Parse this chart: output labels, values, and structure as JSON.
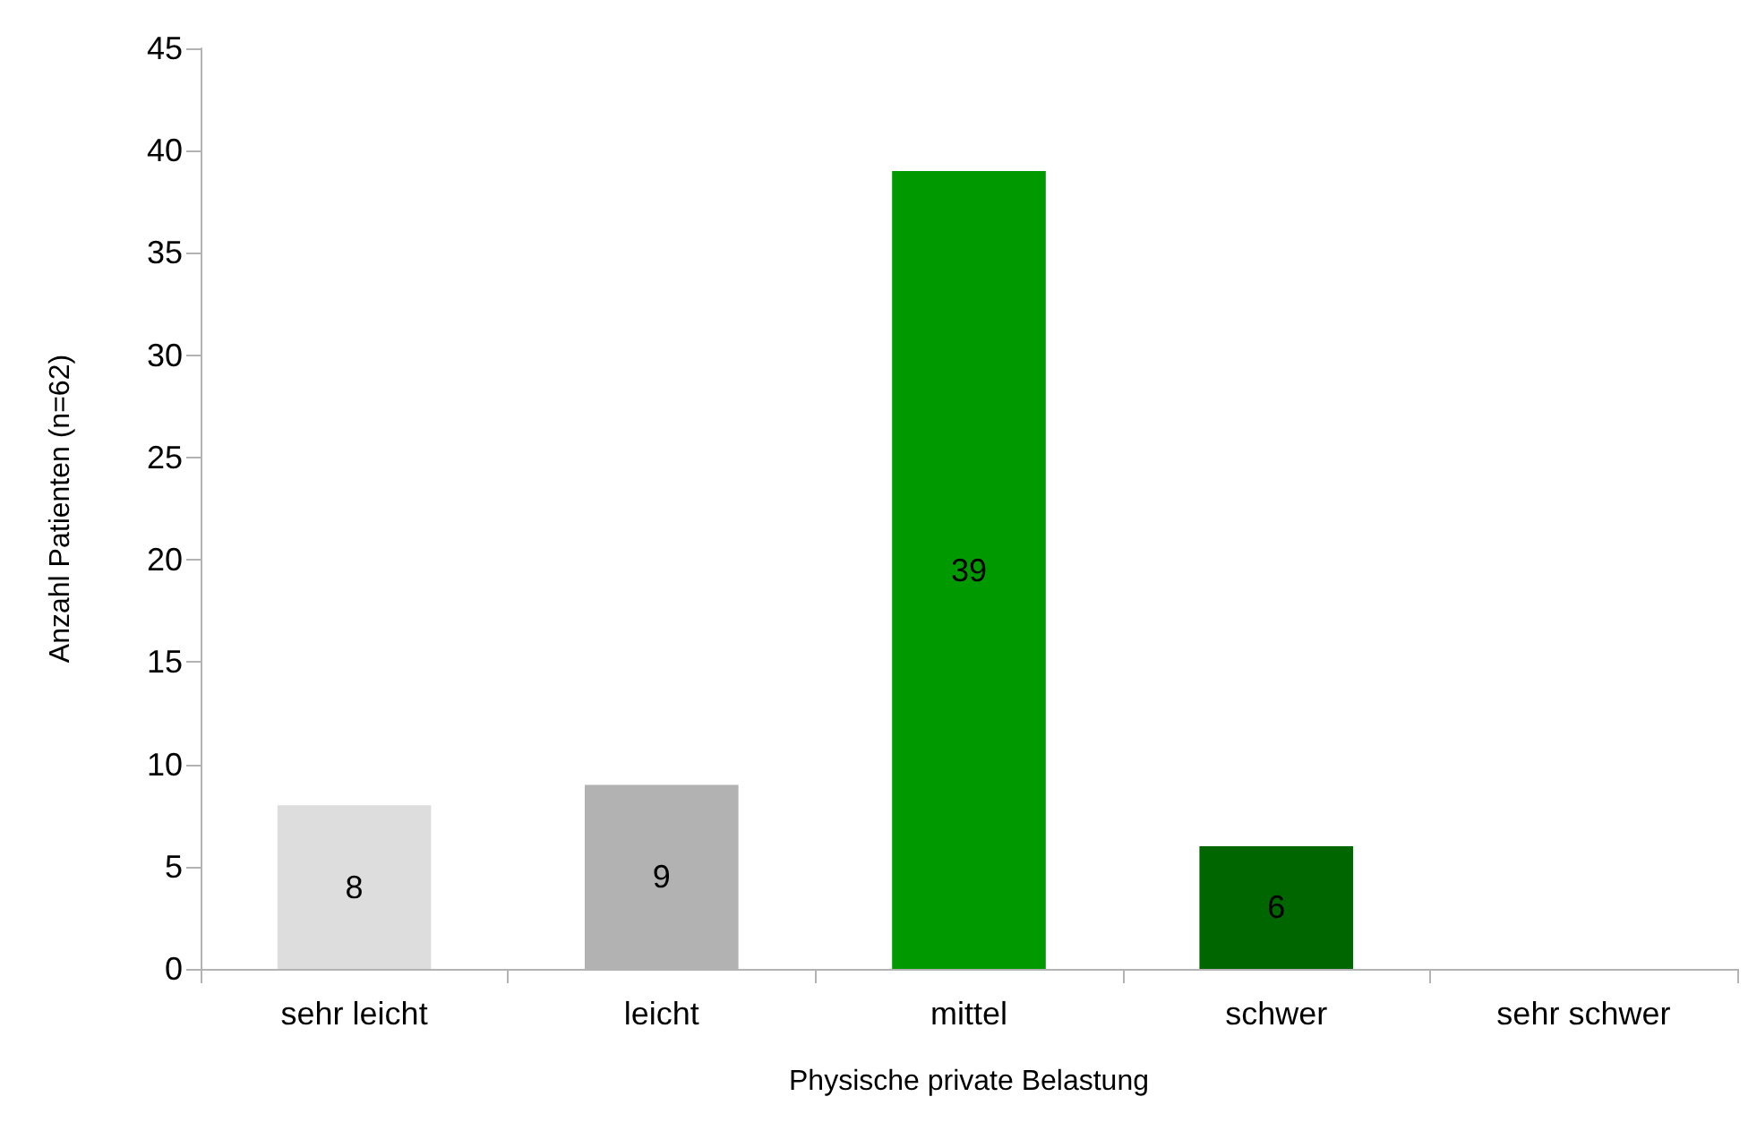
{
  "chart_data": {
    "type": "bar",
    "xlabel": "Physische private Belastung",
    "ylabel": "Anzahl Patienten (n=62)",
    "categories": [
      "sehr leicht",
      "leicht",
      "mittel",
      "schwer",
      "sehr schwer"
    ],
    "values": [
      8,
      9,
      39,
      6,
      0
    ],
    "colors": [
      "#dddddd",
      "#b2b2b2",
      "#009900",
      "#006600",
      "#004400"
    ],
    "value_labels": [
      "8",
      "9",
      "39",
      "6",
      null
    ],
    "ylim": [
      0,
      45
    ],
    "yticks": [
      0,
      5,
      10,
      15,
      20,
      25,
      30,
      35,
      40,
      45
    ],
    "grid": false
  }
}
